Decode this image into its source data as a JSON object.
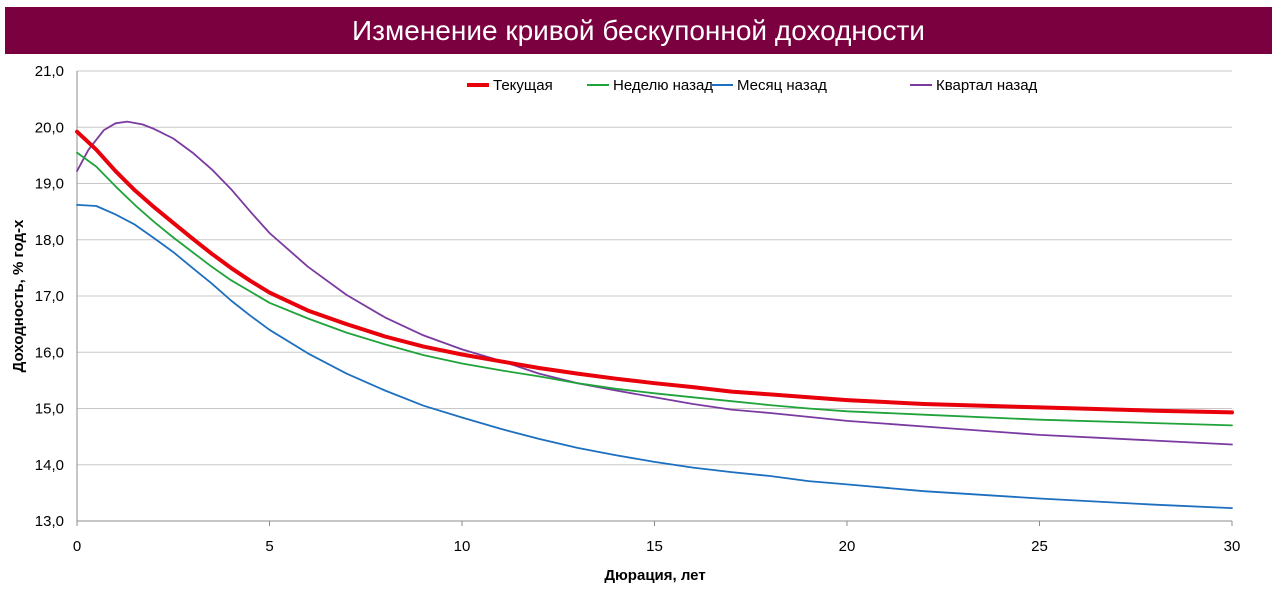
{
  "chart_data": {
    "type": "line",
    "title": "Изменение кривой бескупонной доходности",
    "xlabel": "Дюрация, лет",
    "ylabel": "Доходность, % год-х",
    "xlim": [
      0,
      30
    ],
    "ylim": [
      13.0,
      21.0
    ],
    "x_ticks": [
      "0",
      "5",
      "10",
      "15",
      "20",
      "25",
      "30"
    ],
    "y_ticks": [
      "13,0",
      "14,0",
      "15,0",
      "16,0",
      "17,0",
      "18,0",
      "19,0",
      "20,0",
      "21,0"
    ],
    "grid": "horizontal",
    "legend_position": "top",
    "series": [
      {
        "name": "Текущая",
        "color": "#e8000b",
        "points": [
          [
            0,
            19.92
          ],
          [
            0.5,
            19.6
          ],
          [
            1,
            19.22
          ],
          [
            1.5,
            18.88
          ],
          [
            2,
            18.58
          ],
          [
            2.5,
            18.3
          ],
          [
            3,
            18.02
          ],
          [
            3.5,
            17.75
          ],
          [
            4,
            17.5
          ],
          [
            4.5,
            17.27
          ],
          [
            5,
            17.06
          ],
          [
            6,
            16.74
          ],
          [
            7,
            16.5
          ],
          [
            8,
            16.28
          ],
          [
            9,
            16.1
          ],
          [
            10,
            15.96
          ],
          [
            11,
            15.84
          ],
          [
            12,
            15.72
          ],
          [
            13,
            15.62
          ],
          [
            14,
            15.53
          ],
          [
            15,
            15.45
          ],
          [
            16,
            15.38
          ],
          [
            17,
            15.3
          ],
          [
            18,
            15.25
          ],
          [
            19,
            15.2
          ],
          [
            20,
            15.15
          ],
          [
            22,
            15.08
          ],
          [
            25,
            15.02
          ],
          [
            28,
            14.96
          ],
          [
            30,
            14.93
          ]
        ]
      },
      {
        "name": "Неделю назад",
        "color": "#1fa33a",
        "points": [
          [
            0,
            19.55
          ],
          [
            0.5,
            19.3
          ],
          [
            1,
            18.95
          ],
          [
            1.5,
            18.62
          ],
          [
            2,
            18.32
          ],
          [
            2.5,
            18.04
          ],
          [
            3,
            17.78
          ],
          [
            3.5,
            17.52
          ],
          [
            4,
            17.28
          ],
          [
            4.5,
            17.08
          ],
          [
            5,
            16.88
          ],
          [
            6,
            16.6
          ],
          [
            7,
            16.35
          ],
          [
            8,
            16.14
          ],
          [
            9,
            15.95
          ],
          [
            10,
            15.8
          ],
          [
            11,
            15.68
          ],
          [
            12,
            15.57
          ],
          [
            13,
            15.45
          ],
          [
            14,
            15.35
          ],
          [
            15,
            15.27
          ],
          [
            16,
            15.2
          ],
          [
            17,
            15.13
          ],
          [
            18,
            15.06
          ],
          [
            19,
            15.0
          ],
          [
            20,
            14.95
          ],
          [
            22,
            14.89
          ],
          [
            25,
            14.8
          ],
          [
            28,
            14.74
          ],
          [
            30,
            14.7
          ]
        ]
      },
      {
        "name": "Месяц назад",
        "color": "#1d6fc0",
        "points": [
          [
            0,
            18.62
          ],
          [
            0.5,
            18.6
          ],
          [
            1,
            18.45
          ],
          [
            1.5,
            18.27
          ],
          [
            2,
            18.03
          ],
          [
            2.5,
            17.78
          ],
          [
            3,
            17.5
          ],
          [
            3.5,
            17.22
          ],
          [
            4,
            16.92
          ],
          [
            4.5,
            16.65
          ],
          [
            5,
            16.4
          ],
          [
            6,
            15.98
          ],
          [
            7,
            15.62
          ],
          [
            8,
            15.32
          ],
          [
            9,
            15.05
          ],
          [
            10,
            14.84
          ],
          [
            11,
            14.64
          ],
          [
            12,
            14.46
          ],
          [
            13,
            14.3
          ],
          [
            14,
            14.17
          ],
          [
            15,
            14.05
          ],
          [
            16,
            13.95
          ],
          [
            17,
            13.87
          ],
          [
            18,
            13.8
          ],
          [
            19,
            13.71
          ],
          [
            20,
            13.65
          ],
          [
            22,
            13.53
          ],
          [
            25,
            13.4
          ],
          [
            28,
            13.29
          ],
          [
            30,
            13.23
          ]
        ]
      },
      {
        "name": "Квартал назад",
        "color": "#7b3aa0",
        "points": [
          [
            0,
            19.22
          ],
          [
            0.3,
            19.6
          ],
          [
            0.7,
            19.95
          ],
          [
            1,
            20.07
          ],
          [
            1.3,
            20.1
          ],
          [
            1.7,
            20.05
          ],
          [
            2,
            19.97
          ],
          [
            2.5,
            19.8
          ],
          [
            3,
            19.55
          ],
          [
            3.5,
            19.25
          ],
          [
            4,
            18.9
          ],
          [
            4.5,
            18.5
          ],
          [
            5,
            18.12
          ],
          [
            6,
            17.52
          ],
          [
            7,
            17.02
          ],
          [
            8,
            16.62
          ],
          [
            9,
            16.3
          ],
          [
            10,
            16.05
          ],
          [
            11,
            15.85
          ],
          [
            12,
            15.62
          ],
          [
            13,
            15.45
          ],
          [
            14,
            15.32
          ],
          [
            15,
            15.2
          ],
          [
            16,
            15.08
          ],
          [
            17,
            14.98
          ],
          [
            18,
            14.92
          ],
          [
            19,
            14.85
          ],
          [
            20,
            14.78
          ],
          [
            22,
            14.68
          ],
          [
            25,
            14.53
          ],
          [
            28,
            14.43
          ],
          [
            30,
            14.36
          ]
        ]
      }
    ]
  }
}
